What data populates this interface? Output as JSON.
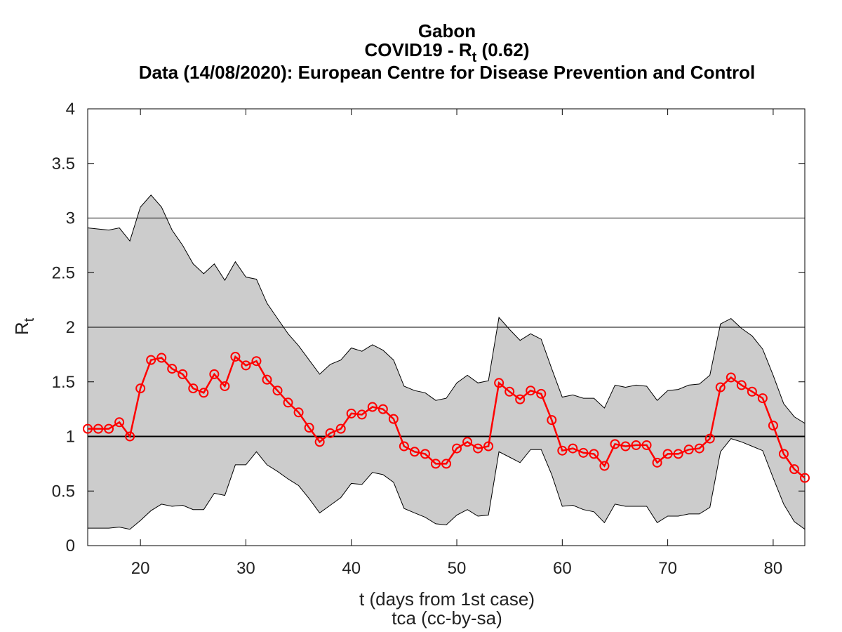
{
  "chart_data": {
    "type": "line",
    "title": "Gabon",
    "subtitle_prefix": "COVID19 - R",
    "subtitle_sub": "t",
    "subtitle_suffix": " (0.62)",
    "source_line": "Data (14/08/2020): European Centre for Disease Prevention and Control",
    "ylabel_main": "R",
    "ylabel_sub": "t",
    "xlabel": "t (days from 1st case)",
    "credit": "tca (cc-by-sa)",
    "xlim": [
      15,
      83
    ],
    "ylim": [
      0,
      4
    ],
    "x_ticks": [
      20,
      30,
      40,
      50,
      60,
      70,
      80
    ],
    "y_ticks": [
      "0",
      "0.5",
      "1",
      "1.5",
      "2",
      "2.5",
      "3",
      "3.5",
      "4"
    ],
    "reference_lines": [
      1,
      2,
      3
    ],
    "grid": false,
    "colors": {
      "series": "#ff0000",
      "band": "#cccccc",
      "band_edge": "#000000",
      "ref_line": "#000000"
    },
    "x": [
      15,
      16,
      17,
      18,
      19,
      20,
      21,
      22,
      23,
      24,
      25,
      26,
      27,
      28,
      29,
      30,
      31,
      32,
      33,
      34,
      35,
      36,
      37,
      38,
      39,
      40,
      41,
      42,
      43,
      44,
      45,
      46,
      47,
      48,
      49,
      50,
      51,
      52,
      53,
      54,
      55,
      56,
      57,
      58,
      59,
      60,
      61,
      62,
      63,
      64,
      65,
      66,
      67,
      68,
      69,
      70,
      71,
      72,
      73,
      74,
      75,
      76,
      77,
      78,
      79,
      80,
      81,
      82,
      83
    ],
    "series": [
      {
        "values": [
          1.07,
          1.07,
          1.07,
          1.13,
          1.0,
          1.44,
          1.7,
          1.72,
          1.62,
          1.57,
          1.44,
          1.4,
          1.57,
          1.46,
          1.73,
          1.65,
          1.69,
          1.52,
          1.42,
          1.31,
          1.22,
          1.08,
          0.95,
          1.03,
          1.07,
          1.21,
          1.2,
          1.27,
          1.25,
          1.16,
          0.91,
          0.86,
          0.84,
          0.75,
          0.75,
          0.89,
          0.95,
          0.89,
          0.91,
          1.49,
          1.41,
          1.34,
          1.42,
          1.39,
          1.15,
          0.87,
          0.89,
          0.85,
          0.84,
          0.73,
          0.93,
          0.91,
          0.92,
          0.92,
          0.76,
          0.84,
          0.84,
          0.88,
          0.89,
          0.98,
          1.45,
          1.54,
          1.47,
          1.41,
          1.35,
          1.1,
          0.84,
          0.7,
          0.62
        ]
      }
    ],
    "band_upper": [
      2.91,
      2.9,
      2.89,
      2.91,
      2.79,
      3.1,
      3.21,
      3.1,
      2.89,
      2.75,
      2.58,
      2.49,
      2.58,
      2.43,
      2.6,
      2.46,
      2.44,
      2.22,
      2.08,
      1.94,
      1.83,
      1.7,
      1.57,
      1.66,
      1.7,
      1.81,
      1.78,
      1.84,
      1.79,
      1.7,
      1.46,
      1.42,
      1.4,
      1.33,
      1.35,
      1.49,
      1.56,
      1.49,
      1.51,
      2.09,
      1.98,
      1.88,
      1.94,
      1.89,
      1.62,
      1.36,
      1.38,
      1.35,
      1.35,
      1.26,
      1.47,
      1.45,
      1.47,
      1.46,
      1.33,
      1.42,
      1.43,
      1.47,
      1.48,
      1.56,
      2.03,
      2.08,
      1.99,
      1.92,
      1.8,
      1.56,
      1.3,
      1.18,
      1.12
    ],
    "band_lower": [
      0.16,
      0.16,
      0.16,
      0.17,
      0.15,
      0.23,
      0.32,
      0.38,
      0.36,
      0.37,
      0.33,
      0.33,
      0.48,
      0.46,
      0.74,
      0.74,
      0.86,
      0.74,
      0.68,
      0.61,
      0.55,
      0.43,
      0.3,
      0.37,
      0.44,
      0.57,
      0.56,
      0.67,
      0.65,
      0.58,
      0.34,
      0.3,
      0.26,
      0.2,
      0.19,
      0.28,
      0.33,
      0.27,
      0.28,
      0.86,
      0.81,
      0.76,
      0.88,
      0.88,
      0.65,
      0.36,
      0.37,
      0.33,
      0.31,
      0.21,
      0.38,
      0.36,
      0.36,
      0.36,
      0.21,
      0.27,
      0.27,
      0.29,
      0.29,
      0.35,
      0.86,
      0.98,
      0.95,
      0.91,
      0.87,
      0.62,
      0.38,
      0.22,
      0.15
    ]
  }
}
